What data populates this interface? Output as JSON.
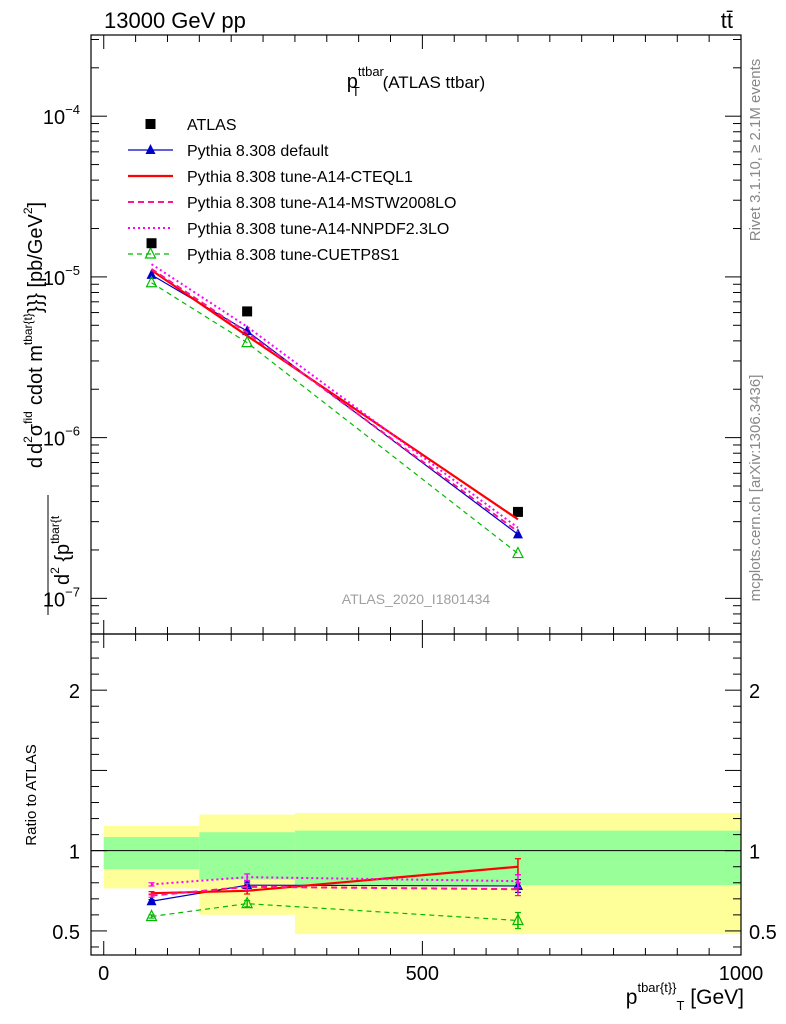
{
  "header": {
    "left_label": "13000 GeV pp",
    "right_label": "tt̄"
  },
  "side_labels": {
    "rivet": "Rivet 3.1.10, ≥ 2.1M events",
    "mcplots": "mcplots.cern.ch [arXiv:1306.3436]"
  },
  "chart_data": [
    {
      "type": "line",
      "panel": "main",
      "title": {
        "main": "p",
        "sup": "ttbar",
        "sub": "T",
        "rest": " (ATLAS ttbar)"
      },
      "watermark": "ATLAS_2020_I1801434",
      "ylabel": "d d²σ^fid / d² {p^tbar{t}} cdot m^tbar{t}}} [pb/GeV²]",
      "ylabel_parts": {
        "d1": "d",
        "d2": "d",
        "sq2": "2",
        "sigma": "σ",
        "fid": "fid",
        "d3": "d",
        "sq3": "2",
        "brace": " {p",
        "tb1": "tbar{t",
        "cdot": "cdot m",
        "tb2": "tbar{t}",
        "unit": "}}} [pb/GeV",
        "unit_sq": "2",
        "close": "]"
      },
      "yscale": "log",
      "ylim": [
        6e-08,
        0.00032
      ],
      "xlim": [
        -20,
        1000
      ],
      "yticks": [
        {
          "value": 1e-07,
          "base": "10",
          "exp": "−7"
        },
        {
          "value": 1e-06,
          "base": "10",
          "exp": "−6"
        },
        {
          "value": 1e-05,
          "base": "10",
          "exp": "−5"
        },
        {
          "value": 0.0001,
          "base": "10",
          "exp": "−4"
        }
      ],
      "legend_position": "top-left",
      "x": [
        75,
        225,
        650
      ],
      "series": [
        {
          "name": "ATLAS",
          "values": [
            1.62e-05,
            6.1e-06,
            3.45e-07
          ],
          "color": "#000000",
          "style": "marker-only",
          "marker": "square"
        },
        {
          "name": "Pythia 8.308 default",
          "values": [
            1.03e-05,
            4.6e-06,
            2.5e-07
          ],
          "color": "#0000cc",
          "style": "solid",
          "marker": "triangle-filled"
        },
        {
          "name": "Pythia 8.308 tune-A14-CTEQL1",
          "values": [
            1.1e-05,
            4.3e-06,
            3.1e-07
          ],
          "color": "#ff0000",
          "style": "solid-thick",
          "marker": "none"
        },
        {
          "name": "Pythia 8.308 tune-A14-MSTW2008LO",
          "values": [
            1.12e-05,
            4.5e-06,
            2.6e-07
          ],
          "color": "#ff1493",
          "style": "dashed",
          "marker": "none"
        },
        {
          "name": "Pythia 8.308 tune-A14-NNPDF2.3LO",
          "values": [
            1.2e-05,
            4.9e-06,
            2.75e-07
          ],
          "color": "#ff00ff",
          "style": "dotted",
          "marker": "none"
        },
        {
          "name": "Pythia 8.308 tune-CUETP8S1",
          "values": [
            9.2e-06,
            3.9e-06,
            1.9e-07
          ],
          "color": "#00bb00",
          "style": "dashed-thin",
          "marker": "triangle-open"
        }
      ]
    },
    {
      "type": "line",
      "panel": "ratio",
      "ylabel": "Ratio to ATLAS",
      "ylim": [
        0.35,
        2.35
      ],
      "yticks": [
        0.5,
        1,
        2
      ],
      "ytick_labels": [
        "0.5",
        "1",
        "2"
      ],
      "xlim": [
        -20,
        1000
      ],
      "xticks": [
        0,
        500,
        1000
      ],
      "xtick_labels": [
        "0",
        "500",
        "1000"
      ],
      "xlabel": {
        "main": "p",
        "sup": "tbar{t}",
        "sub": "}",
        "subT": "T",
        "unit": " [GeV]"
      },
      "bands": [
        {
          "x_range": [
            0,
            150
          ],
          "yellow": [
            0.765,
            1.155
          ],
          "green": [
            0.885,
            1.085
          ]
        },
        {
          "x_range": [
            150,
            300
          ],
          "yellow": [
            0.6,
            1.225
          ],
          "green": [
            0.82,
            1.115
          ]
        },
        {
          "x_range": [
            300,
            1000
          ],
          "yellow": [
            0.48,
            1.235
          ],
          "green": [
            0.785,
            1.125
          ]
        }
      ],
      "x": [
        75,
        225,
        650
      ],
      "series": [
        {
          "name": "Pythia 8.308 default",
          "values": [
            0.685,
            0.785,
            0.78
          ],
          "errors": [
            0.01,
            0.02,
            0.04
          ],
          "color": "#0000cc"
        },
        {
          "name": "Pythia 8.308 tune-A14-CTEQL1",
          "values": [
            0.735,
            0.75,
            0.9
          ],
          "errors": [
            0.01,
            0.02,
            0.05
          ],
          "color": "#ff0000"
        },
        {
          "name": "Pythia 8.308 tune-A14-MSTW2008LO",
          "values": [
            0.72,
            0.775,
            0.76
          ],
          "errors": [
            0.01,
            0.02,
            0.04
          ],
          "color": "#ff1493"
        },
        {
          "name": "Pythia 8.308 tune-A14-NNPDF2.3LO",
          "values": [
            0.79,
            0.835,
            0.81
          ],
          "errors": [
            0.01,
            0.02,
            0.04
          ],
          "color": "#ff00ff"
        },
        {
          "name": "Pythia 8.308 tune-CUETP8S1",
          "values": [
            0.59,
            0.67,
            0.565
          ],
          "errors": [
            0.01,
            0.02,
            0.05
          ],
          "color": "#00bb00"
        }
      ]
    }
  ]
}
